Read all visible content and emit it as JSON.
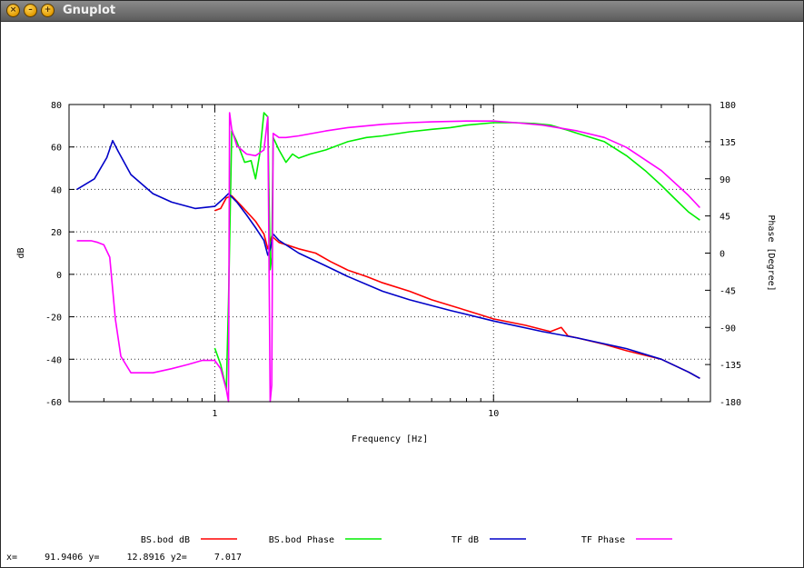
{
  "window": {
    "title": "Gnuplot",
    "controls": [
      "close-icon",
      "minimize-icon",
      "maximize-icon"
    ]
  },
  "status": {
    "x_label": "x=",
    "x_value": "91.9406",
    "y_label": "y=",
    "y_value": "12.8916",
    "y2_label": "y2=",
    "y2_value": "7.017"
  },
  "chart_data": {
    "type": "line",
    "title": "",
    "xlabel": "Frequency [Hz]",
    "ylabel": "dB",
    "y2label": "Phase [Degree]",
    "x_scale": "log",
    "xlim": [
      0.3,
      60
    ],
    "ylim": [
      -60,
      80
    ],
    "y2lim": [
      -180,
      180
    ],
    "x_ticks": [
      1,
      10
    ],
    "x_tick_labels": [
      "1",
      "10"
    ],
    "y_ticks": [
      -60,
      -40,
      -20,
      0,
      20,
      40,
      60,
      80
    ],
    "y2_ticks": [
      -180,
      -135,
      -90,
      -45,
      0,
      45,
      90,
      135,
      180
    ],
    "grid": true,
    "legend_position": "bottom",
    "series": [
      {
        "name": "BS.bod dB",
        "color": "#ff0000",
        "axis": "y",
        "x": [
          1.0,
          1.05,
          1.1,
          1.15,
          1.25,
          1.4,
          1.5,
          1.55,
          1.6,
          1.7,
          1.8,
          2.0,
          2.3,
          2.6,
          3.0,
          3.5,
          4.0,
          5.0,
          6.0,
          8.0,
          10.0,
          13.0,
          16.0,
          17.5,
          18.5,
          20.0,
          25.0,
          30.0,
          40.0,
          50.0,
          55.0
        ],
        "values": [
          30,
          31,
          36,
          37,
          32,
          25,
          19,
          12,
          18,
          15,
          14,
          12,
          10,
          6,
          2,
          -1,
          -4,
          -8,
          -12,
          -17,
          -21,
          -24,
          -27,
          -25,
          -29,
          -30,
          -33,
          -36,
          -40,
          -46,
          -49
        ]
      },
      {
        "name": "BS.bod Phase",
        "color": "#00ee00",
        "axis": "y2",
        "x": [
          1.0,
          1.05,
          1.1,
          1.12,
          1.15,
          1.2,
          1.28,
          1.35,
          1.4,
          1.45,
          1.5,
          1.55,
          1.58,
          1.6,
          1.62,
          1.7,
          1.8,
          1.9,
          2.0,
          2.2,
          2.5,
          3.0,
          3.5,
          4.0,
          5.0,
          6.0,
          7.0,
          8.0,
          10.0,
          12.0,
          14.0,
          16.0,
          18.0,
          20.0,
          25.0,
          30.0,
          35.0,
          40.0,
          45.0,
          50.0,
          55.0
        ],
        "values": [
          -115,
          -135,
          -165,
          -60,
          148,
          135,
          110,
          112,
          90,
          120,
          170,
          165,
          -20,
          -5,
          140,
          125,
          110,
          120,
          115,
          120,
          125,
          135,
          140,
          142,
          147,
          150,
          152,
          155,
          158,
          158,
          157,
          155,
          150,
          145,
          135,
          118,
          100,
          82,
          65,
          50,
          40
        ]
      },
      {
        "name": "TF dB",
        "color": "#0000c8",
        "axis": "y",
        "x": [
          0.32,
          0.37,
          0.41,
          0.43,
          0.45,
          0.5,
          0.6,
          0.7,
          0.85,
          1.0,
          1.08,
          1.12,
          1.2,
          1.3,
          1.4,
          1.5,
          1.55,
          1.58,
          1.62,
          1.7,
          2.0,
          2.5,
          3.0,
          4.0,
          5.0,
          7.0,
          10.0,
          15.0,
          20.0,
          30.0,
          40.0,
          50.0,
          55.0
        ],
        "values": [
          40,
          45,
          55,
          63,
          58,
          47,
          38,
          34,
          31,
          32,
          36,
          38,
          34,
          28,
          22,
          16,
          9,
          12,
          19,
          16,
          10,
          4,
          -1,
          -8,
          -12,
          -17,
          -22,
          -27,
          -30,
          -35,
          -40,
          -46,
          -49
        ]
      },
      {
        "name": "TF Phase",
        "color": "#ff00ff",
        "axis": "y2",
        "x": [
          0.32,
          0.36,
          0.38,
          0.4,
          0.42,
          0.44,
          0.46,
          0.5,
          0.6,
          0.7,
          0.8,
          0.9,
          1.0,
          1.05,
          1.1,
          1.12,
          1.13,
          1.15,
          1.2,
          1.3,
          1.4,
          1.5,
          1.55,
          1.58,
          1.6,
          1.62,
          1.7,
          1.8,
          2.0,
          2.5,
          3.0,
          4.0,
          5.0,
          6.0,
          8.0,
          10.0,
          12.0,
          15.0,
          20.0,
          25.0,
          30.0,
          40.0,
          50.0,
          55.0
        ],
        "values": [
          15,
          15,
          13,
          10,
          -5,
          -80,
          -125,
          -145,
          -145,
          -140,
          -135,
          -130,
          -130,
          -140,
          -165,
          -180,
          170,
          150,
          130,
          120,
          118,
          125,
          165,
          -180,
          -160,
          145,
          140,
          140,
          142,
          148,
          152,
          156,
          158,
          159,
          160,
          160,
          158,
          155,
          148,
          140,
          128,
          100,
          70,
          55
        ]
      }
    ]
  }
}
